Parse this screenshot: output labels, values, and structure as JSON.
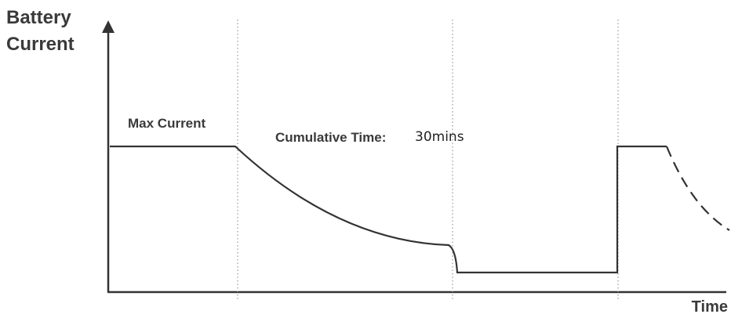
{
  "y_axis_label": {
    "line1": "Battery",
    "line2": "Current"
  },
  "x_axis_label": "Time",
  "annotations": {
    "max_current": "Max Current",
    "cumulative_prefix": "Cumulative Time:",
    "cumulative_value": "30mins"
  },
  "colors": {
    "axis": "#333333",
    "curve": "#333333",
    "divider": "#999999",
    "text": "#3a3a3a"
  }
}
